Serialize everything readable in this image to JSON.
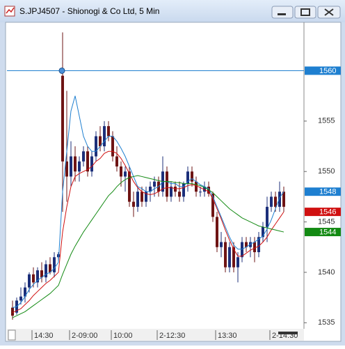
{
  "chart_data": {
    "type": "candlestick",
    "title": "S.JPJ4507 - Shionogi & Co Ltd, 5 Min",
    "categories": [
      null,
      null,
      null,
      null,
      null,
      "14:30",
      null,
      null,
      null,
      null,
      null,
      null,
      null,
      null,
      "2-09:00",
      null,
      null,
      null,
      null,
      null,
      null,
      null,
      null,
      null,
      "10:00",
      null,
      null,
      null,
      null,
      null,
      null,
      null,
      null,
      null,
      null,
      "2-12:30",
      null,
      null,
      null,
      null,
      null,
      null,
      null,
      null,
      null,
      null,
      null,
      null,
      null,
      "13:30",
      null,
      null,
      null,
      null,
      null,
      null,
      null,
      null,
      null,
      null,
      null,
      null,
      "2-14:30",
      null,
      null,
      null
    ],
    "open": [
      1536.5,
      1536,
      1537.2,
      1537.6,
      1538.5,
      1539.8,
      1539,
      1540.2,
      1539.5,
      1540.8,
      1540,
      1541.5,
      1559.5,
      1551,
      1549.5,
      1551.5,
      1550,
      1551,
      1552,
      1550,
      1551.5,
      1553.5,
      1552.5,
      1554.5,
      1553.5,
      1551.5,
      1550.5,
      1549.5,
      1550,
      1547,
      1546.5,
      1548,
      1547,
      1548,
      1548.5,
      1549,
      1548,
      1550,
      1547.5,
      1548.5,
      1548,
      1547.5,
      1548.8,
      1550,
      1549,
      1548,
      1548,
      1548.5,
      1547.8,
      1545.5,
      1542.5,
      1543,
      1540.5,
      1542.5,
      1540.5,
      1541.5,
      1543,
      1542.5,
      1543,
      1542,
      1543.5,
      1544.5,
      1546.5,
      1547.5,
      1546.5,
      1548
    ],
    "high": [
      1537.2,
      1537.5,
      1538.5,
      1539,
      1540,
      1540.5,
      1540.5,
      1541,
      1541.2,
      1541.5,
      1542,
      1542,
      1563.8,
      1558,
      1553,
      1552.5,
      1551.5,
      1552.5,
      1552.5,
      1552,
      1554,
      1554.5,
      1555,
      1555,
      1554,
      1552.5,
      1551,
      1550.5,
      1550.5,
      1548,
      1548.5,
      1548.5,
      1548.5,
      1549,
      1549.5,
      1549.5,
      1551.5,
      1550.5,
      1549,
      1549,
      1549,
      1549,
      1550.5,
      1550.5,
      1549.5,
      1548.5,
      1549,
      1549,
      1548,
      1546,
      1544,
      1543.5,
      1543,
      1543,
      1542,
      1543.5,
      1543.5,
      1543.5,
      1543.5,
      1544,
      1545,
      1547.5,
      1548,
      1548,
      1549,
      1548.5
    ],
    "low": [
      1535.3,
      1535.8,
      1536.8,
      1537,
      1538,
      1538.5,
      1538.5,
      1539,
      1539,
      1539.8,
      1539.5,
      1541,
      1546,
      1547,
      1548.5,
      1549,
      1549,
      1550.5,
      1549.5,
      1549.5,
      1551,
      1552,
      1552,
      1553,
      1551,
      1550,
      1548.5,
      1548,
      1546.5,
      1545.5,
      1546,
      1546.5,
      1546.5,
      1547,
      1547.5,
      1547.5,
      1547.5,
      1547,
      1547,
      1547.5,
      1547,
      1547,
      1548,
      1548.5,
      1547.5,
      1547.5,
      1547.5,
      1547.5,
      1545,
      1542,
      1541.5,
      1540,
      1540,
      1540,
      1539,
      1541,
      1542,
      1541.5,
      1541,
      1541.5,
      1543,
      1543,
      1546,
      1546,
      1546,
      1546
    ],
    "close": [
      1535.7,
      1537.2,
      1537.6,
      1538.5,
      1539.8,
      1539,
      1540.2,
      1539.5,
      1540.8,
      1540,
      1541.5,
      1541.8,
      1551,
      1549.5,
      1551.5,
      1550,
      1551,
      1552,
      1550,
      1551.5,
      1553.5,
      1552.5,
      1554.5,
      1553.5,
      1551.5,
      1550.5,
      1549.5,
      1550,
      1547,
      1546.5,
      1548,
      1547,
      1548,
      1548.5,
      1549,
      1548,
      1550,
      1547.5,
      1548.5,
      1548,
      1547.5,
      1548.8,
      1550,
      1549,
      1548,
      1548,
      1548.5,
      1547.8,
      1545.5,
      1542.5,
      1543,
      1540.5,
      1542.5,
      1540.5,
      1541.5,
      1543,
      1542.5,
      1543,
      1542,
      1543.5,
      1544.5,
      1546.5,
      1547.5,
      1546.5,
      1548,
      1546.5
    ],
    "up_color": "#1c2f7a",
    "down_color": "#6e1414",
    "series": [
      {
        "color": "#1e7fd0",
        "label_bg": "#1e7fd0",
        "values": [
          1536.5,
          1536.6,
          1537,
          1537.6,
          1538.3,
          1538.8,
          1539.2,
          1539.5,
          1539.8,
          1540,
          1540.4,
          1541,
          1548,
          1552,
          1556,
          1557.5,
          1555.5,
          1553.5,
          1552.5,
          1552,
          1552,
          1552.5,
          1553,
          1553.5,
          1553.5,
          1553,
          1552.3,
          1551.5,
          1550.5,
          1549.5,
          1548.5,
          1548.3,
          1548,
          1548,
          1548.3,
          1548.5,
          1549,
          1549,
          1548.8,
          1548.8,
          1548.5,
          1548.5,
          1549,
          1549.3,
          1549,
          1548.7,
          1548.5,
          1548.3,
          1547.5,
          1546.5,
          1545.5,
          1544.5,
          1543.5,
          1542.7,
          1542.3,
          1542.3,
          1542.5,
          1542.8,
          1543,
          1543.3,
          1543.6,
          1544.3,
          1545.2,
          1546.3,
          1547.4,
          1548
        ]
      },
      {
        "color": "#d01010",
        "label_bg": "#d01010",
        "values": [
          1536,
          1536.2,
          1536.4,
          1536.8,
          1537.2,
          1537.7,
          1538.1,
          1538.5,
          1538.9,
          1539.2,
          1539.6,
          1540,
          1544,
          1546.5,
          1548.5,
          1549.5,
          1549.8,
          1550,
          1550.2,
          1550.5,
          1551,
          1551.3,
          1551.8,
          1552,
          1552,
          1551.8,
          1551.3,
          1550.6,
          1549.8,
          1549,
          1548.4,
          1548,
          1547.8,
          1547.7,
          1547.8,
          1548,
          1548.3,
          1548.4,
          1548.4,
          1548.3,
          1548.3,
          1548.4,
          1548.6,
          1548.7,
          1548.6,
          1548.4,
          1548.2,
          1548,
          1547.3,
          1546.3,
          1545.3,
          1544.2,
          1543.2,
          1542.3,
          1541.6,
          1541.6,
          1541.9,
          1542.2,
          1542.4,
          1542.6,
          1543,
          1543.5,
          1544.2,
          1544.8,
          1545.4,
          1546
        ]
      },
      {
        "color": "#138a13",
        "label_bg": "#138a13",
        "values": [
          1535.5,
          1535.7,
          1535.9,
          1536.1,
          1536.4,
          1536.7,
          1537,
          1537.3,
          1537.6,
          1537.9,
          1538.3,
          1538.7,
          1539.8,
          1540.8,
          1541.8,
          1542.6,
          1543.3,
          1544,
          1544.6,
          1545.2,
          1545.8,
          1546.4,
          1547,
          1547.6,
          1548,
          1548.5,
          1548.9,
          1549.2,
          1549.4,
          1549.5,
          1549.6,
          1549.5,
          1549.4,
          1549.3,
          1549.2,
          1549.1,
          1549,
          1549,
          1549,
          1548.9,
          1548.9,
          1548.8,
          1548.8,
          1548.8,
          1548.7,
          1548.6,
          1548.4,
          1548.2,
          1547.9,
          1547.5,
          1547.1,
          1546.7,
          1546.3,
          1546,
          1545.7,
          1545.4,
          1545.2,
          1545,
          1544.8,
          1544.6,
          1544.5,
          1544.4,
          1544.3,
          1544.2,
          1544.1,
          1544
        ]
      }
    ],
    "hline": 1560,
    "hline_color": "#1e7fd0",
    "ylim": [
      1534.4,
      1564.8
    ],
    "yticks": [
      1535,
      1540,
      1545,
      1550,
      1555
    ]
  }
}
